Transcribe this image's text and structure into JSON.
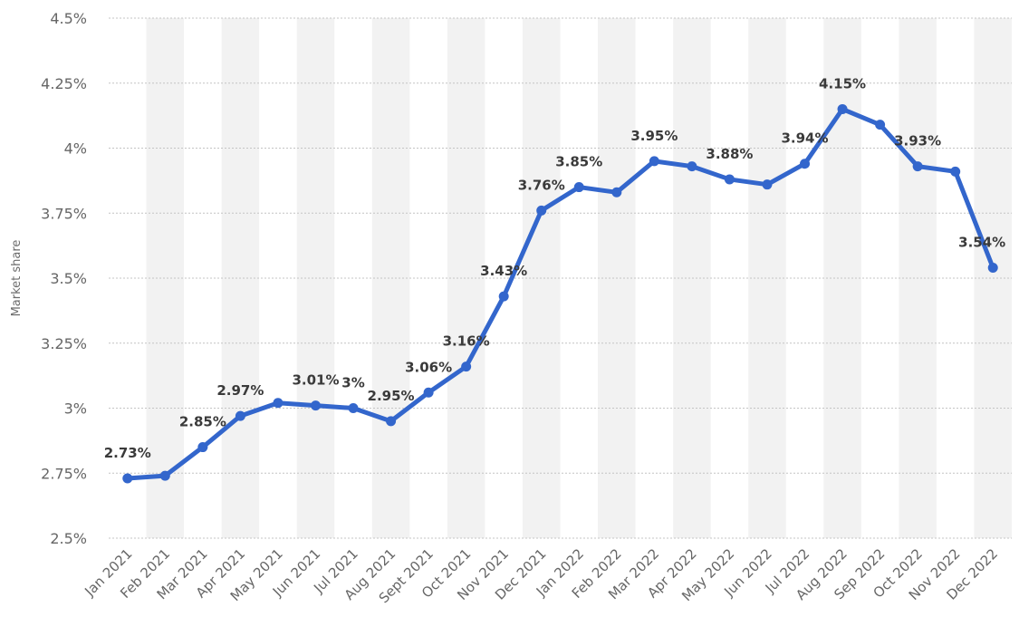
{
  "chart_data": {
    "type": "line",
    "ylabel": "Market share",
    "xlabel": "",
    "ylim": [
      2.5,
      4.5
    ],
    "y_ticks": [
      "2.5%",
      "2.75%",
      "3%",
      "3.25%",
      "3.5%",
      "3.75%",
      "4%",
      "4.25%",
      "4.5%"
    ],
    "y_tick_values": [
      2.5,
      2.75,
      3.0,
      3.25,
      3.5,
      3.75,
      4.0,
      4.25,
      4.5
    ],
    "grid": true,
    "legend": "none",
    "colors": {
      "line": "#3366cc",
      "band": "#f2f2f2",
      "grid": "#c4c4c4"
    },
    "categories": [
      "Jan 2021",
      "Feb 2021",
      "Mar 2021",
      "Apr 2021",
      "May 2021",
      "Jun 2021",
      "Jul 2021",
      "Aug 2021",
      "Sept 2021",
      "Oct 2021",
      "Nov 2021",
      "Dec 2021",
      "Jan 2022",
      "Feb 2022",
      "Mar 2022",
      "Apr 2022",
      "May 2022",
      "Jun 2022",
      "Jul 2022",
      "Aug 2022",
      "Sep 2022",
      "Oct 2022",
      "Nov 2022",
      "Dec 2022"
    ],
    "series": [
      {
        "values": [
          2.73,
          2.74,
          2.85,
          2.97,
          3.02,
          3.01,
          3.0,
          2.95,
          3.06,
          3.16,
          3.43,
          3.76,
          3.85,
          3.83,
          3.95,
          3.93,
          3.88,
          3.86,
          3.94,
          4.15,
          4.09,
          3.93,
          3.91,
          3.54
        ],
        "data_labels": [
          "2.73%",
          "",
          "2.85%",
          "2.97%",
          "",
          "3.01%",
          "3%",
          "2.95%",
          "3.06%",
          "3.16%",
          "3.43%",
          "3.76%",
          "3.85%",
          "",
          "3.95%",
          "",
          "3.88%",
          "",
          "3.94%",
          "4.15%",
          "",
          "3.93%",
          "",
          "3.54%"
        ]
      }
    ]
  }
}
